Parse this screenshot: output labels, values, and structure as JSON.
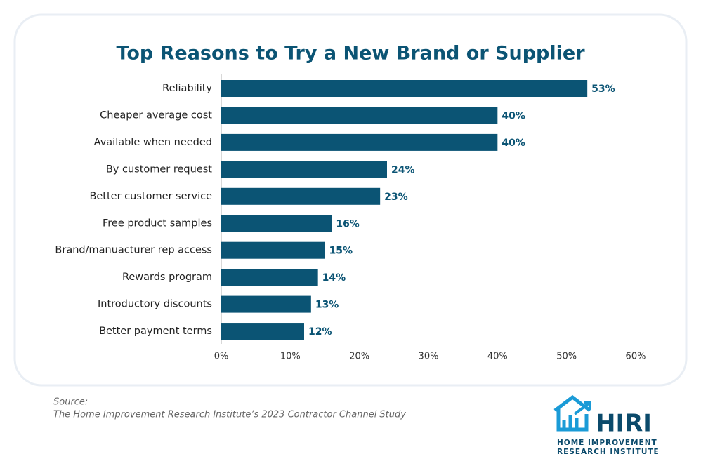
{
  "chart_data": {
    "type": "barh",
    "title": "Top Reasons to Try a New Brand or Supplier",
    "categories": [
      "Reliability",
      "Cheaper average cost",
      "Available when needed",
      "By customer request",
      "Better customer service",
      "Free product samples",
      "Brand/manuacturer rep access",
      "Rewards program",
      "Introductory discounts",
      "Better payment terms"
    ],
    "values": [
      53,
      40,
      40,
      24,
      23,
      16,
      15,
      14,
      13,
      12
    ],
    "value_labels": [
      "53%",
      "40%",
      "40%",
      "24%",
      "23%",
      "16%",
      "15%",
      "14%",
      "13%",
      "12%"
    ],
    "color": "#0b5474",
    "xlim": [
      0,
      60
    ],
    "xticks": [
      {
        "value": 0,
        "label": "0%"
      },
      {
        "value": 10,
        "label": "10%"
      },
      {
        "value": 20,
        "label": "20%"
      },
      {
        "value": 30,
        "label": "30%"
      },
      {
        "value": 40,
        "label": "40%"
      },
      {
        "value": 50,
        "label": "50%"
      },
      {
        "value": 60,
        "label": "60%"
      }
    ],
    "grid": false
  },
  "footer": {
    "source_label": "Source:",
    "source": "The Home Improvement Research Institute’s 2023 Contractor Channel Study",
    "logo": {
      "name": "HIRI",
      "line1": "HOME IMPROVEMENT",
      "line2": "RESEARCH INSTITUTE"
    }
  }
}
